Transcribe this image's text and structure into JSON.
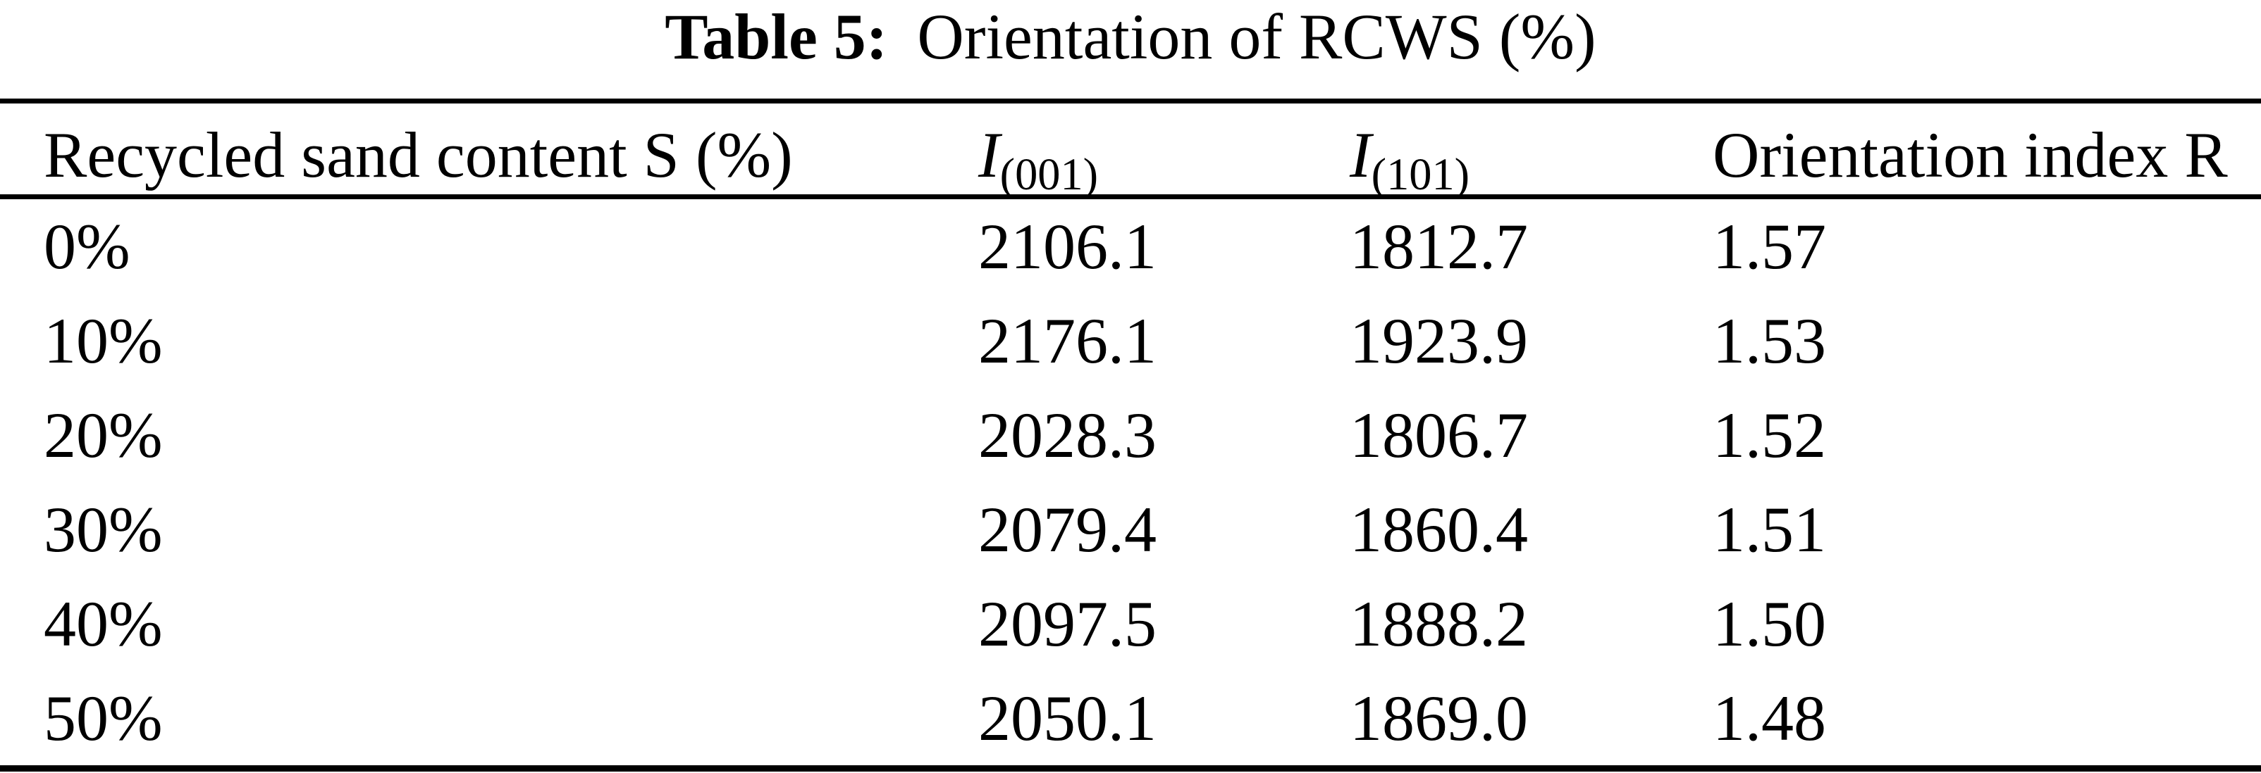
{
  "caption": {
    "label": "Table 5:",
    "text": "Orientation of RCWS (%)"
  },
  "table": {
    "columns": [
      {
        "label": "Recycled sand content S (%)"
      },
      {
        "label": "I",
        "subscript": "(001)"
      },
      {
        "label": "I",
        "subscript": "(101)"
      },
      {
        "label": "Orientation index R"
      }
    ],
    "rows": [
      [
        "0%",
        "2106.1",
        "1812.7",
        "1.57"
      ],
      [
        "10%",
        "2176.1",
        "1923.9",
        "1.53"
      ],
      [
        "20%",
        "2028.3",
        "1806.7",
        "1.52"
      ],
      [
        "30%",
        "2079.4",
        "1860.4",
        "1.51"
      ],
      [
        "40%",
        "2097.5",
        "1888.2",
        "1.50"
      ],
      [
        "50%",
        "2050.1",
        "1869.0",
        "1.48"
      ]
    ]
  },
  "colors": {
    "text": "#000000",
    "background": "#ffffff",
    "rule": "#000000"
  }
}
